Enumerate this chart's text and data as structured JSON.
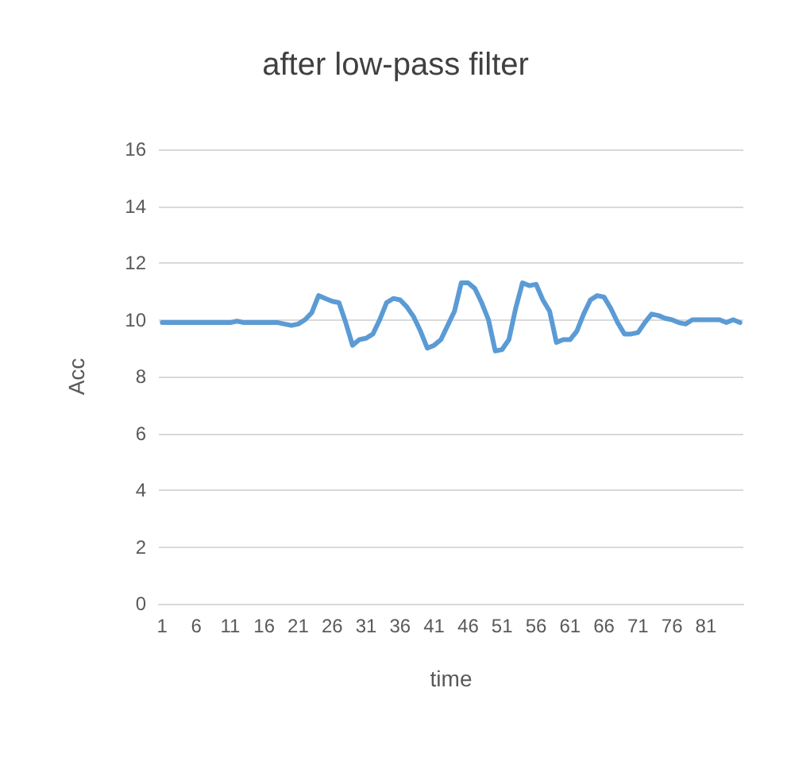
{
  "chart_data": {
    "type": "line",
    "title": "after low-pass filter",
    "xlabel": "time",
    "ylabel": "Acc",
    "categories": [
      "1",
      null,
      null,
      null,
      null,
      "6",
      null,
      null,
      null,
      null,
      "11",
      null,
      null,
      null,
      null,
      "16",
      null,
      null,
      null,
      null,
      "21",
      null,
      null,
      null,
      null,
      "26",
      null,
      null,
      null,
      null,
      "31",
      null,
      null,
      null,
      null,
      "36",
      null,
      null,
      null,
      null,
      "41",
      null,
      null,
      null,
      null,
      "46",
      null,
      null,
      null,
      null,
      "51",
      null,
      null,
      null,
      null,
      "56",
      null,
      null,
      null,
      null,
      "61",
      null,
      null,
      null,
      null,
      "66",
      null,
      null,
      null,
      null,
      "71",
      null,
      null,
      null,
      null,
      "76",
      null,
      null,
      null,
      null,
      "81",
      null,
      null,
      null,
      null,
      null
    ],
    "series": [
      {
        "color": "#5b9bd5",
        "values": [
          9.9,
          9.9,
          9.9,
          9.9,
          9.9,
          9.9,
          9.9,
          9.9,
          9.9,
          9.9,
          9.9,
          9.95,
          9.9,
          9.9,
          9.9,
          9.9,
          9.9,
          9.9,
          9.85,
          9.8,
          9.85,
          10.0,
          10.25,
          10.85,
          10.75,
          10.65,
          10.6,
          9.9,
          9.1,
          9.3,
          9.35,
          9.5,
          10.0,
          10.6,
          10.75,
          10.7,
          10.45,
          10.1,
          9.6,
          9.0,
          9.1,
          9.3,
          9.8,
          10.3,
          11.3,
          11.3,
          11.1,
          10.6,
          10.0,
          8.9,
          8.95,
          9.3,
          10.4,
          11.3,
          11.2,
          11.25,
          10.7,
          10.3,
          9.2,
          9.3,
          9.3,
          9.6,
          10.2,
          10.7,
          10.85,
          10.8,
          10.4,
          9.9,
          9.5,
          9.5,
          9.55,
          9.9,
          10.2,
          10.15,
          10.05,
          10.0,
          9.9,
          9.85,
          10.0,
          10.0,
          10.0,
          10.0,
          10.0,
          9.9,
          10.0,
          9.9
        ]
      }
    ],
    "ylim": [
      0,
      16
    ],
    "yticks": [
      0,
      2,
      4,
      6,
      8,
      10,
      12,
      14,
      16
    ],
    "grid": "y",
    "marker": "none",
    "line_style": "solid"
  }
}
